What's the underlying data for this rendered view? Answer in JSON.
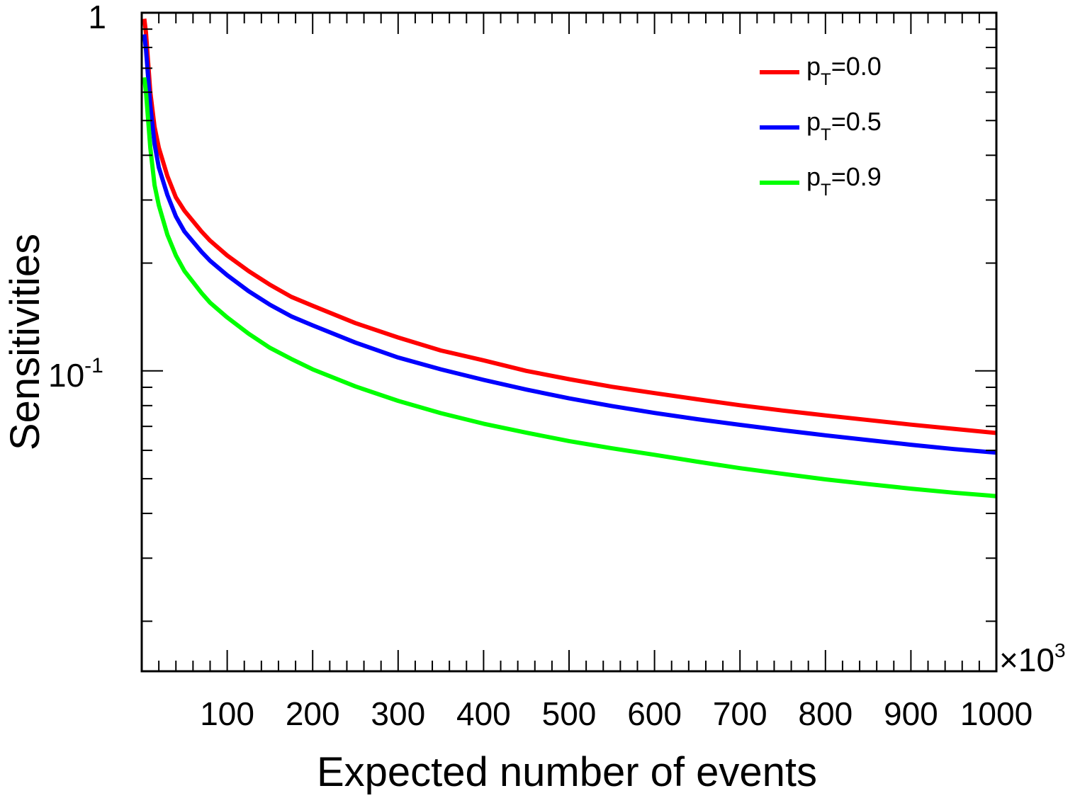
{
  "chart_data": {
    "type": "line",
    "title": "",
    "xlabel": "Expected number of events",
    "ylabel": "Sensitivities",
    "x_multiplier_label": "×10",
    "x_multiplier_exponent": "3",
    "xlim": [
      0,
      1000
    ],
    "ylim": [
      0.0145,
      1
    ],
    "y_scale": "log",
    "x_tick_labels": [
      "100",
      "200",
      "300",
      "400",
      "500",
      "600",
      "700",
      "800",
      "900",
      "1000"
    ],
    "y_tick_labels": [
      {
        "value": 1,
        "base": "1",
        "exponent": ""
      },
      {
        "value": 0.1,
        "base": "10",
        "exponent": "-1"
      }
    ],
    "grid": false,
    "legend_position": "top-right",
    "x": [
      3,
      5,
      10,
      15,
      20,
      30,
      40,
      50,
      70,
      80,
      100,
      125,
      150,
      175,
      200,
      250,
      300,
      350,
      400,
      450,
      500,
      550,
      600,
      650,
      700,
      750,
      800,
      850,
      900,
      950,
      1000
    ],
    "series": [
      {
        "name": "p_T=0.0",
        "label_main": "p",
        "label_sub": "T",
        "label_value": "=0.0",
        "color": "#ff0000",
        "values": [
          0.962,
          0.88,
          0.6,
          0.48,
          0.42,
          0.35,
          0.305,
          0.28,
          0.245,
          0.231,
          0.21,
          0.19,
          0.174,
          0.161,
          0.152,
          0.136,
          0.124,
          0.114,
          0.107,
          0.1,
          0.0948,
          0.0903,
          0.0867,
          0.0833,
          0.0802,
          0.0775,
          0.0751,
          0.0729,
          0.0708,
          0.0689,
          0.0671
        ]
      },
      {
        "name": "p_T=0.5",
        "label_main": "p",
        "label_sub": "T",
        "label_value": "=0.5",
        "color": "#0000ff",
        "values": [
          0.87,
          0.79,
          0.55,
          0.43,
          0.37,
          0.31,
          0.27,
          0.245,
          0.215,
          0.203,
          0.185,
          0.167,
          0.153,
          0.142,
          0.134,
          0.12,
          0.109,
          0.101,
          0.0944,
          0.0887,
          0.0838,
          0.0798,
          0.0763,
          0.0733,
          0.0707,
          0.0683,
          0.0661,
          0.0641,
          0.0622,
          0.0605,
          0.0591
        ]
      },
      {
        "name": "p_T=0.9",
        "label_main": "p",
        "label_sub": "T",
        "label_value": "=0.9",
        "color": "#00ff00",
        "values": [
          0.66,
          0.6,
          0.42,
          0.33,
          0.29,
          0.24,
          0.21,
          0.19,
          0.165,
          0.155,
          0.141,
          0.127,
          0.116,
          0.108,
          0.101,
          0.0905,
          0.0825,
          0.0762,
          0.0712,
          0.0672,
          0.0637,
          0.0608,
          0.0583,
          0.0558,
          0.0535,
          0.0516,
          0.0498,
          0.0483,
          0.0469,
          0.0457,
          0.0447
        ]
      }
    ]
  }
}
